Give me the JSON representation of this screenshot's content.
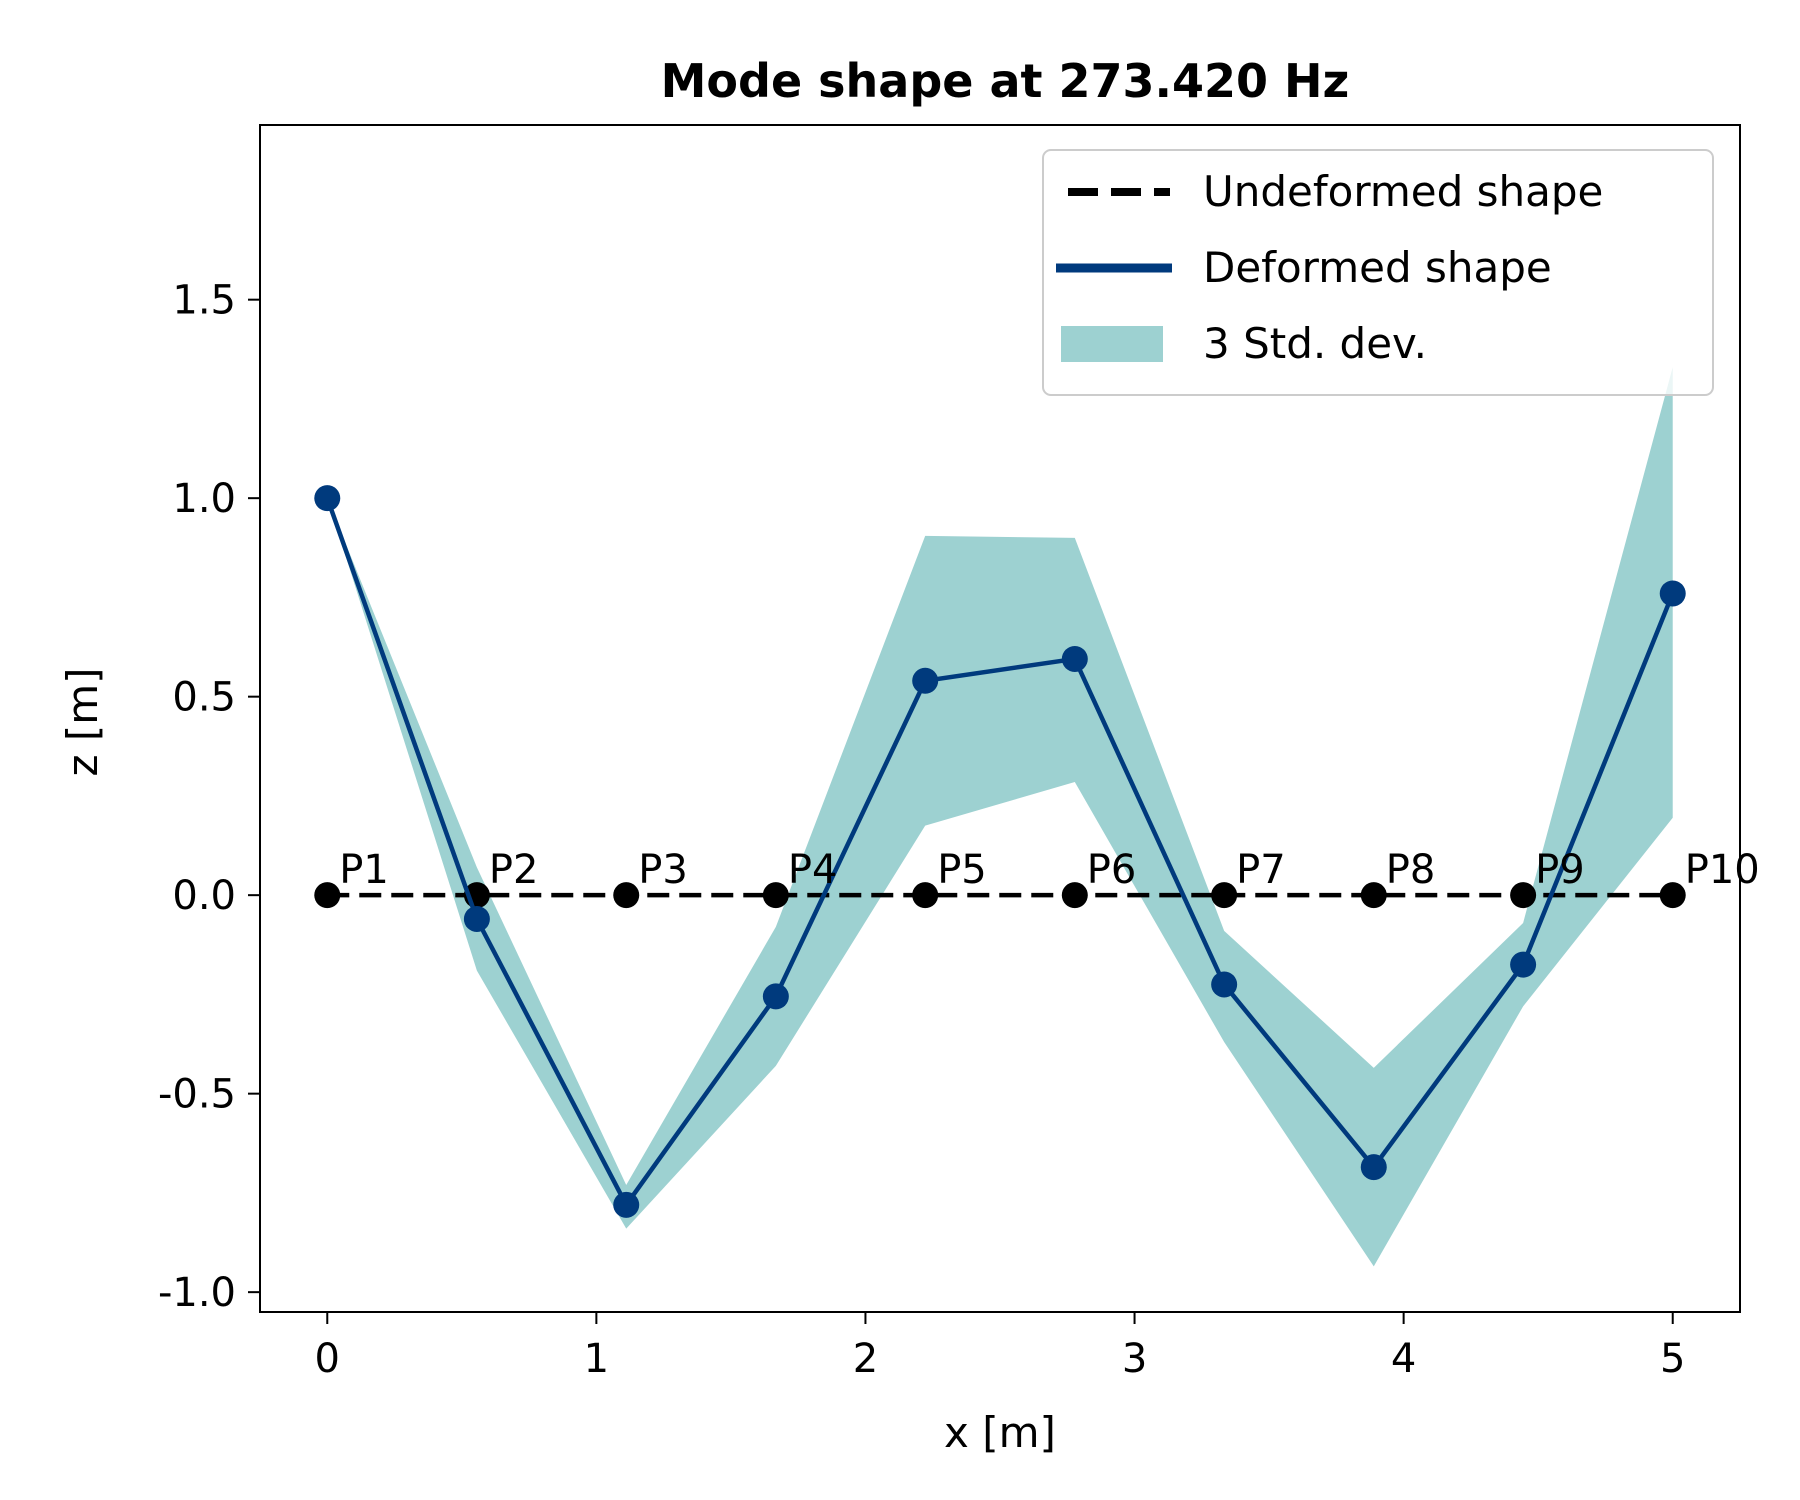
{
  "chart_data": {
    "type": "line",
    "title": "Mode shape at 273.420 Hz",
    "xlabel": "x [m]",
    "ylabel": "z [m]",
    "xlim": [
      -0.25,
      5.25
    ],
    "ylim": [
      -1.05,
      1.94
    ],
    "xticks": [
      0,
      1,
      2,
      3,
      4,
      5
    ],
    "xtick_labels": [
      "0",
      "1",
      "2",
      "3",
      "4",
      "5"
    ],
    "yticks": [
      -1.0,
      -0.5,
      0.0,
      0.5,
      1.0,
      1.5
    ],
    "ytick_labels": [
      "-1.0",
      "-0.5",
      "0.0",
      "0.5",
      "1.0",
      "1.5"
    ],
    "grid": false,
    "legend_position": "top-right",
    "point_labels": [
      "P1",
      "P2",
      "P3",
      "P4",
      "P5",
      "P6",
      "P7",
      "P8",
      "P9",
      "P10"
    ],
    "x": [
      0,
      0.556,
      1.111,
      1.667,
      2.222,
      2.778,
      3.333,
      3.889,
      4.444,
      5.0
    ],
    "series": [
      {
        "name": "Undeformed shape",
        "style": "dashed",
        "color": "#000000",
        "values": [
          0,
          0,
          0,
          0,
          0,
          0,
          0,
          0,
          0,
          0
        ]
      },
      {
        "name": "Deformed shape",
        "style": "solid",
        "color": "#003a7d",
        "values": [
          1.0,
          -0.06,
          -0.78,
          -0.255,
          0.54,
          0.595,
          -0.225,
          -0.685,
          -0.175,
          0.76
        ]
      },
      {
        "name": "3 Std. dev.",
        "style": "band",
        "color": "#9dd1d1",
        "lower": [
          1.0,
          -0.19,
          -0.84,
          -0.43,
          0.175,
          0.285,
          -0.37,
          -0.935,
          -0.28,
          0.195
        ],
        "upper": [
          1.0,
          0.07,
          -0.73,
          -0.08,
          0.905,
          0.9,
          -0.09,
          -0.435,
          -0.07,
          1.33
        ]
      }
    ]
  }
}
